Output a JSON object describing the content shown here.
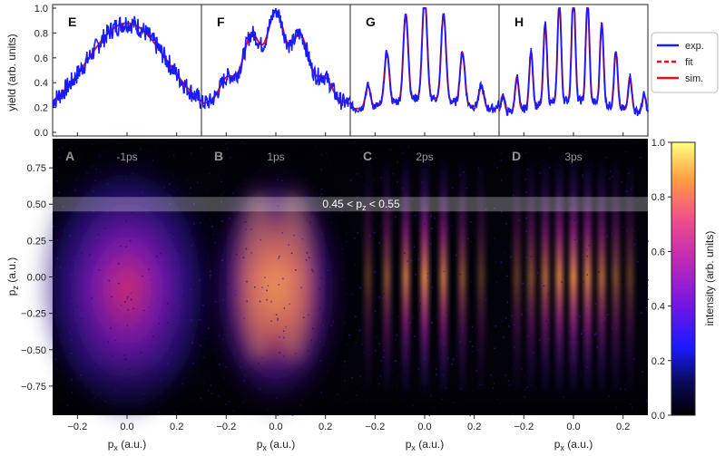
{
  "figure": {
    "top_ylabel": "yield (arb. units)",
    "left_ylabel_main": "p",
    "left_ylabel_sub": "z",
    "left_ylabel_unit": " (a.u.)",
    "xlabel_main": "p",
    "xlabel_sub": "x",
    "xlabel_unit": " (a.u.)",
    "band_text_pre": "0.45 < p",
    "band_text_sub": "z",
    "band_text_post": " < 0.55",
    "colorbar_label": "intensity (arb. units)"
  },
  "legend": {
    "entries": [
      {
        "label": "exp.",
        "color": "#1a1aff",
        "style": "solid"
      },
      {
        "label": "fit",
        "color": "#e8101a",
        "style": "dashed"
      },
      {
        "label": "sim.",
        "color": "#e8101a",
        "style": "solid"
      }
    ]
  },
  "chart_data": [
    {
      "type": "line",
      "panels": [
        "E",
        "F",
        "G",
        "H"
      ],
      "ylabel": "yield (arb. units)",
      "xlim": [
        -0.3,
        0.3
      ],
      "ylim": [
        0,
        1.0
      ],
      "yticks": [
        "0.0",
        "0.2",
        "0.4",
        "0.6",
        "0.8",
        "1.0"
      ],
      "fringe_counts": [
        0,
        2,
        4,
        6
      ],
      "series": [
        {
          "name": "exp.",
          "color": "#1a1aff"
        },
        {
          "name": "fit",
          "color": "#e8101a"
        },
        {
          "name": "sim.",
          "color": "#e8101a"
        }
      ]
    },
    {
      "type": "heatmap",
      "panels": [
        {
          "letter": "A",
          "delay": "-1ps"
        },
        {
          "letter": "B",
          "delay": "1ps"
        },
        {
          "letter": "C",
          "delay": "2ps"
        },
        {
          "letter": "D",
          "delay": "3ps"
        }
      ],
      "xlabel": "px (a.u.)",
      "ylabel": "pz (a.u.)",
      "xlim": [
        -0.3,
        0.3
      ],
      "ylim": [
        -0.95,
        0.95
      ],
      "xticks": [
        "-0.2",
        "0.0",
        "0.2"
      ],
      "yticks": [
        "0.75",
        "0.50",
        "0.25",
        "0.00",
        "-0.25",
        "-0.50",
        "-0.75"
      ],
      "highlight_band": [
        0.45,
        0.55
      ],
      "colorbar": {
        "min": 0.0,
        "max": 1.0,
        "ticks": [
          "0.0",
          "0.2",
          "0.4",
          "0.6",
          "0.8",
          "1.0"
        ],
        "cmap": "plasma"
      }
    }
  ]
}
